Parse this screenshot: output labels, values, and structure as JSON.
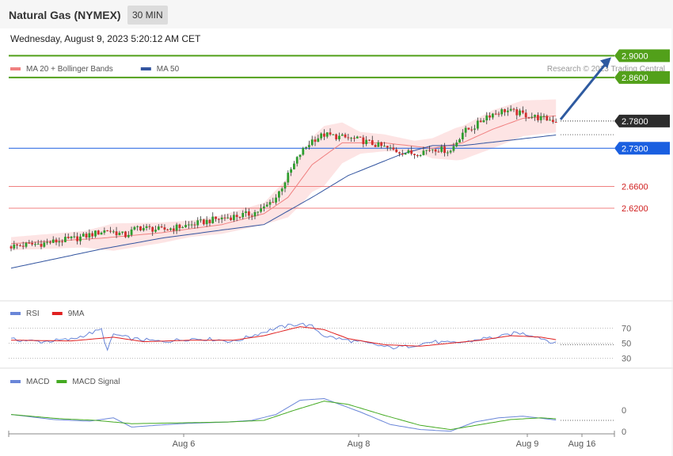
{
  "header": {
    "title": "Natural Gas (NYMEX)",
    "interval": "30 MIN",
    "datetime": "Wednesday, August 9, 2023 5:20:12 AM CET",
    "credit": "Research © 2023 Trading Central"
  },
  "legend": {
    "main": [
      {
        "name": "MA 20 + Bollinger Bands",
        "color": "#f08080"
      },
      {
        "name": "MA 50",
        "color": "#3355a0"
      }
    ],
    "rsi": [
      {
        "name": "RSI",
        "color": "#6a86d8"
      },
      {
        "name": "9MA",
        "color": "#e02020"
      }
    ],
    "macd": [
      {
        "name": "MACD",
        "color": "#6a86d8"
      },
      {
        "name": "MACD Signal",
        "color": "#44aa22"
      }
    ]
  },
  "colors": {
    "up": "#2e9e2e",
    "down": "#d22e2e",
    "resistance": "#52a01a",
    "support": "#f08080",
    "pivot": "#1a5fe0",
    "current": "#2c2c2c",
    "band": "#fde4e4",
    "arrow": "#2e5aa0"
  },
  "chart_data": [
    {
      "type": "line",
      "panel": "price",
      "x_ticks": [
        "Aug 6",
        "Aug 8",
        "Aug 9",
        "Aug 16"
      ],
      "ylim": [
        2.45,
        2.915
      ],
      "levels": [
        {
          "value": 2.9,
          "label": "2.9000",
          "kind": "resistance"
        },
        {
          "value": 2.86,
          "label": "2.8600",
          "kind": "resistance"
        },
        {
          "value": 2.78,
          "label": "2.7800",
          "kind": "current"
        },
        {
          "value": 2.73,
          "label": "2.7300",
          "kind": "pivot"
        },
        {
          "value": 2.66,
          "label": "2.6600",
          "kind": "support"
        },
        {
          "value": 2.62,
          "label": "2.6200",
          "kind": "support"
        }
      ],
      "price_anchors": [
        [
          0,
          2.55
        ],
        [
          10,
          2.555
        ],
        [
          22,
          2.565
        ],
        [
          32,
          2.58
        ],
        [
          38,
          2.57
        ],
        [
          42,
          2.585
        ],
        [
          50,
          2.58
        ],
        [
          60,
          2.59
        ],
        [
          68,
          2.6
        ],
        [
          74,
          2.605
        ],
        [
          80,
          2.61
        ],
        [
          84,
          2.62
        ],
        [
          88,
          2.64
        ],
        [
          92,
          2.68
        ],
        [
          96,
          2.72
        ],
        [
          100,
          2.745
        ],
        [
          104,
          2.755
        ],
        [
          110,
          2.75
        ],
        [
          116,
          2.745
        ],
        [
          122,
          2.735
        ],
        [
          128,
          2.725
        ],
        [
          134,
          2.72
        ],
        [
          140,
          2.73
        ],
        [
          146,
          2.725
        ],
        [
          150,
          2.76
        ],
        [
          154,
          2.77
        ],
        [
          158,
          2.79
        ],
        [
          164,
          2.8
        ],
        [
          168,
          2.795
        ],
        [
          176,
          2.785
        ],
        [
          182,
          2.78
        ]
      ],
      "ma20_anchors": [
        [
          0,
          2.555
        ],
        [
          30,
          2.565
        ],
        [
          50,
          2.575
        ],
        [
          70,
          2.59
        ],
        [
          84,
          2.61
        ],
        [
          92,
          2.64
        ],
        [
          100,
          2.7
        ],
        [
          110,
          2.74
        ],
        [
          124,
          2.74
        ],
        [
          140,
          2.73
        ],
        [
          150,
          2.74
        ],
        [
          160,
          2.765
        ],
        [
          170,
          2.785
        ],
        [
          182,
          2.79
        ]
      ],
      "ma50_anchors": [
        [
          0,
          2.51
        ],
        [
          30,
          2.545
        ],
        [
          50,
          2.565
        ],
        [
          70,
          2.58
        ],
        [
          84,
          2.59
        ],
        [
          100,
          2.64
        ],
        [
          112,
          2.68
        ],
        [
          130,
          2.72
        ],
        [
          140,
          2.735
        ],
        [
          150,
          2.735
        ],
        [
          166,
          2.745
        ],
        [
          182,
          2.755
        ]
      ],
      "band_width_anchors": [
        [
          0,
          0.012
        ],
        [
          24,
          0.015
        ],
        [
          34,
          0.025
        ],
        [
          60,
          0.015
        ],
        [
          84,
          0.02
        ],
        [
          96,
          0.045
        ],
        [
          104,
          0.055
        ],
        [
          116,
          0.02
        ],
        [
          134,
          0.01
        ],
        [
          148,
          0.03
        ],
        [
          160,
          0.035
        ],
        [
          182,
          0.03
        ]
      ],
      "projection": {
        "from": 2.78,
        "to": 2.9
      },
      "candles": 182
    },
    {
      "type": "line",
      "panel": "rsi",
      "levels": [
        70,
        50,
        30
      ],
      "ylim": [
        20,
        80
      ],
      "rsi_anchors": [
        [
          0,
          55
        ],
        [
          10,
          52
        ],
        [
          20,
          55
        ],
        [
          30,
          68
        ],
        [
          32,
          40
        ],
        [
          34,
          62
        ],
        [
          40,
          56
        ],
        [
          50,
          52
        ],
        [
          60,
          56
        ],
        [
          68,
          55
        ],
        [
          74,
          52
        ],
        [
          80,
          60
        ],
        [
          88,
          70
        ],
        [
          96,
          76
        ],
        [
          100,
          72
        ],
        [
          104,
          60
        ],
        [
          110,
          55
        ],
        [
          118,
          50
        ],
        [
          126,
          44
        ],
        [
          132,
          46
        ],
        [
          140,
          52
        ],
        [
          146,
          50
        ],
        [
          152,
          52
        ],
        [
          156,
          56
        ],
        [
          162,
          58
        ],
        [
          168,
          64
        ],
        [
          174,
          60
        ],
        [
          182,
          48
        ]
      ],
      "ma9_anchors": [
        [
          0,
          54
        ],
        [
          20,
          53
        ],
        [
          34,
          58
        ],
        [
          44,
          52
        ],
        [
          60,
          54
        ],
        [
          74,
          54
        ],
        [
          84,
          60
        ],
        [
          96,
          72
        ],
        [
          104,
          68
        ],
        [
          112,
          56
        ],
        [
          124,
          48
        ],
        [
          136,
          46
        ],
        [
          146,
          50
        ],
        [
          156,
          54
        ],
        [
          166,
          60
        ],
        [
          176,
          58
        ],
        [
          182,
          54
        ]
      ]
    },
    {
      "type": "line",
      "panel": "macd",
      "zero_labels": [
        "0",
        "0"
      ],
      "ylim": [
        -1.2,
        1.4
      ],
      "macd_anchors": [
        [
          0,
          0.05
        ],
        [
          14,
          -0.25
        ],
        [
          26,
          -0.35
        ],
        [
          34,
          -0.15
        ],
        [
          40,
          -0.7
        ],
        [
          56,
          -0.5
        ],
        [
          72,
          -0.4
        ],
        [
          80,
          -0.3
        ],
        [
          88,
          0.05
        ],
        [
          96,
          0.9
        ],
        [
          104,
          1.0
        ],
        [
          116,
          0.2
        ],
        [
          126,
          -0.55
        ],
        [
          136,
          -0.85
        ],
        [
          146,
          -0.95
        ],
        [
          154,
          -0.4
        ],
        [
          162,
          -0.15
        ],
        [
          170,
          -0.05
        ],
        [
          182,
          -0.3
        ]
      ],
      "signal_anchors": [
        [
          0,
          0.05
        ],
        [
          16,
          -0.2
        ],
        [
          28,
          -0.3
        ],
        [
          40,
          -0.5
        ],
        [
          56,
          -0.45
        ],
        [
          72,
          -0.4
        ],
        [
          84,
          -0.3
        ],
        [
          94,
          0.3
        ],
        [
          104,
          0.85
        ],
        [
          112,
          0.65
        ],
        [
          124,
          0.0
        ],
        [
          136,
          -0.6
        ],
        [
          146,
          -0.85
        ],
        [
          156,
          -0.55
        ],
        [
          166,
          -0.25
        ],
        [
          176,
          -0.15
        ],
        [
          182,
          -0.22
        ]
      ]
    }
  ]
}
